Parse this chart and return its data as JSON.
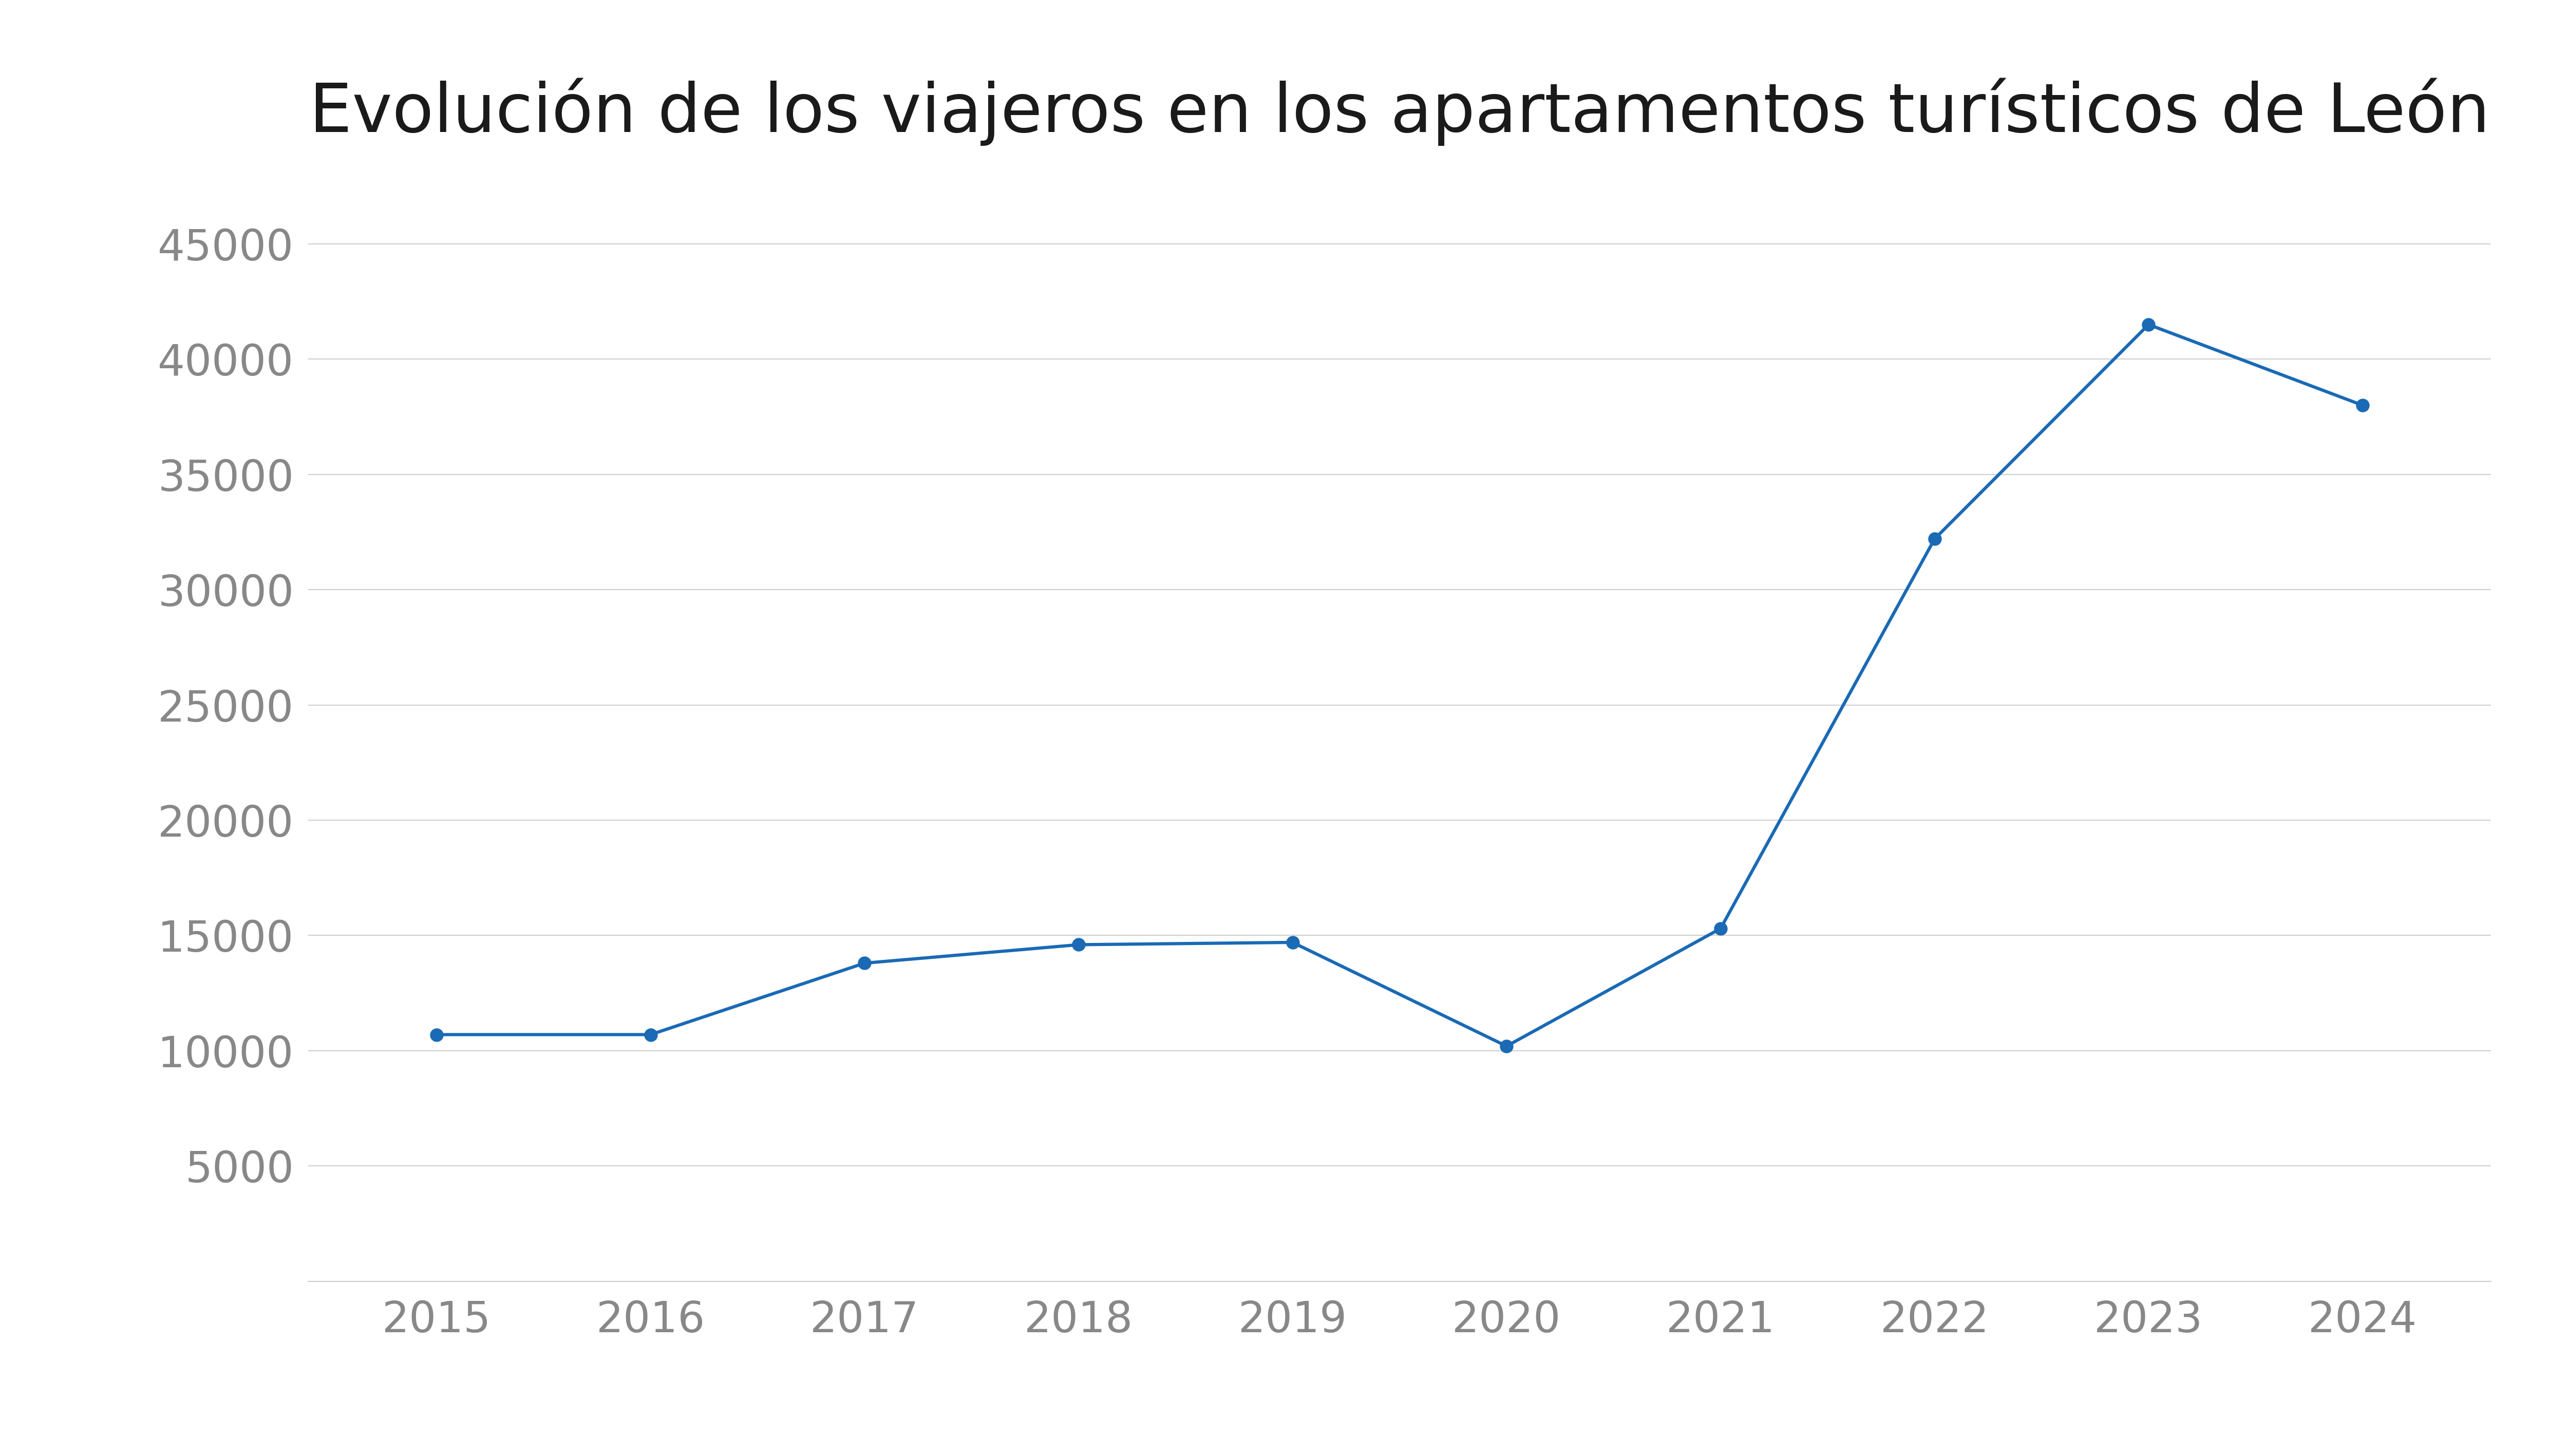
{
  "title": "Evolución de los viajeros en los apartamentos turísticos de León",
  "years": [
    2015,
    2016,
    2017,
    2018,
    2019,
    2020,
    2021,
    2022,
    2023,
    2024
  ],
  "values": [
    10700,
    10700,
    13800,
    14600,
    14700,
    10200,
    15300,
    32200,
    41500,
    38000
  ],
  "line_color": "#1a6ab5",
  "marker": "o",
  "marker_size": 18,
  "line_width": 4.5,
  "background_color": "#ffffff",
  "grid_color": "#d0d0d0",
  "ylim": [
    0,
    48000
  ],
  "yticks": [
    5000,
    10000,
    15000,
    20000,
    25000,
    30000,
    35000,
    40000,
    45000
  ],
  "title_fontsize": 95,
  "tick_fontsize": 60,
  "title_color": "#1a1a1a",
  "tick_color": "#888888"
}
